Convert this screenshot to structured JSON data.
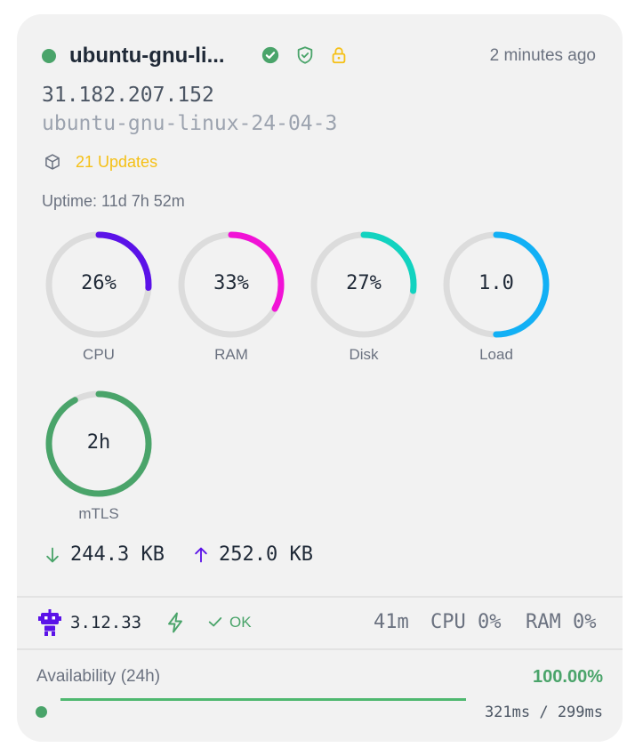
{
  "server": {
    "name": "ubuntu-gnu-li...",
    "last_seen": "2 minutes ago",
    "ip": "31.182.207.152",
    "hostname": "ubuntu-gnu-linux-24-04-3",
    "updates_label": "21 Updates",
    "uptime": "Uptime: 11d 7h 52m",
    "status_color": "#4aa46a"
  },
  "header_icons": [
    {
      "name": "verified-check-icon",
      "color": "#4aa46a"
    },
    {
      "name": "shield-icon",
      "color": "#4aa46a"
    },
    {
      "name": "lock-icon",
      "color": "#f5c016"
    }
  ],
  "gauges": [
    {
      "id": "cpu",
      "label": "CPU",
      "display": "26%",
      "fraction": 0.26,
      "color": "#5b12e8"
    },
    {
      "id": "ram",
      "label": "RAM",
      "display": "33%",
      "fraction": 0.33,
      "color": "#f112d6"
    },
    {
      "id": "disk",
      "label": "Disk",
      "display": "27%",
      "fraction": 0.27,
      "color": "#12d3c0"
    },
    {
      "id": "load",
      "label": "Load",
      "display": "1.0",
      "fraction": 0.5,
      "color": "#12b0f5"
    },
    {
      "id": "mtls",
      "label": "mTLS",
      "display": "2h",
      "fraction": 0.92,
      "color": "#4aa46a"
    }
  ],
  "network": {
    "down": "244.3 KB",
    "up": "252.0 KB",
    "down_color": "#4aa46a",
    "up_color": "#5b12e8"
  },
  "agent": {
    "version": "3.12.33",
    "status": "OK",
    "uptime": "41m",
    "cpu": "CPU 0%",
    "ram": "RAM 0%"
  },
  "availability": {
    "label": "Availability (24h)",
    "value": "100.00%",
    "fraction": 1.0,
    "latency": "321ms / 299ms"
  }
}
